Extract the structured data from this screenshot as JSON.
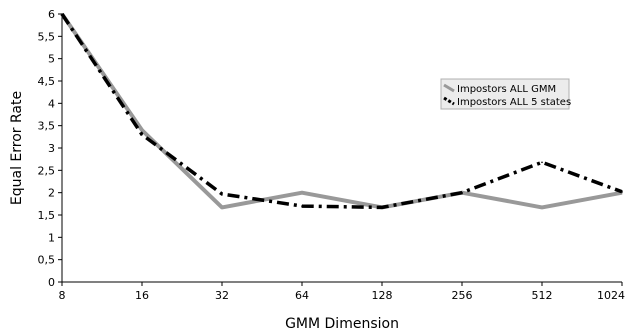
{
  "chart_data": {
    "type": "line",
    "title": "",
    "xlabel": "GMM Dimension",
    "ylabel": "Equal Error Rate",
    "categories": [
      "8",
      "16",
      "32",
      "64",
      "128",
      "256",
      "512",
      "1024"
    ],
    "y_ticks": [
      "0",
      "0,5",
      "1",
      "1,5",
      "2",
      "2,5",
      "3",
      "3,5",
      "4",
      "4,5",
      "5",
      "5,5",
      "6"
    ],
    "ylim": [
      0,
      6
    ],
    "grid": false,
    "legend_position": "right",
    "series": [
      {
        "name": "Impostors ALL GMM",
        "color": "#999999",
        "style": "solid",
        "values": [
          6.0,
          3.4,
          1.67,
          2.0,
          1.67,
          2.0,
          1.67,
          2.0
        ]
      },
      {
        "name": "Impostors ALL 5 states",
        "color": "#000000",
        "style": "dash-dot",
        "values": [
          6.0,
          3.3,
          1.97,
          1.7,
          1.67,
          2.0,
          2.68,
          2.02
        ]
      }
    ]
  }
}
